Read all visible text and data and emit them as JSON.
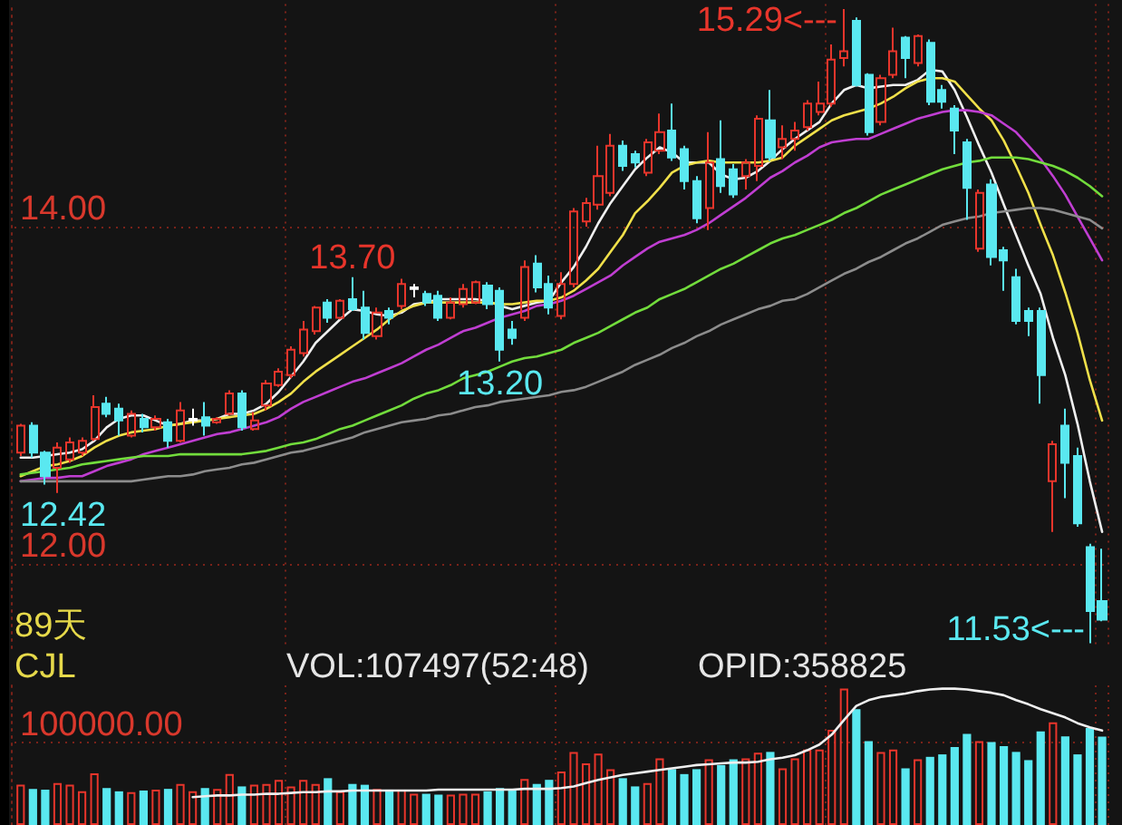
{
  "chart_data": [
    {
      "type": "candlestick",
      "categories": [
        null,
        null,
        null,
        null,
        null,
        null,
        null,
        null,
        null,
        null,
        null,
        null,
        null,
        null,
        null,
        null,
        null,
        null,
        null,
        null,
        null,
        null,
        null,
        null,
        null,
        null,
        null,
        null,
        null,
        null,
        null,
        null,
        null,
        null,
        null,
        null,
        null,
        null,
        null,
        null,
        null,
        null,
        null,
        null,
        null,
        null,
        null,
        null,
        null,
        null,
        null,
        null,
        null,
        null,
        null,
        null,
        null,
        null,
        null,
        null,
        null,
        null,
        null,
        null,
        null,
        null,
        null,
        null,
        null,
        null,
        null,
        null,
        null,
        null,
        null,
        null,
        null,
        null,
        null,
        null,
        null,
        null,
        null,
        null,
        null,
        null,
        null,
        null,
        null
      ],
      "ohlc": [
        [
          12.66,
          12.83,
          12.64,
          12.82
        ],
        [
          12.82,
          12.84,
          12.63,
          12.66
        ],
        [
          12.66,
          12.67,
          12.47,
          12.52
        ],
        [
          12.57,
          12.72,
          12.42,
          12.69
        ],
        [
          12.62,
          12.75,
          12.6,
          12.72
        ],
        [
          12.66,
          12.75,
          12.64,
          12.73
        ],
        [
          12.74,
          13.0,
          12.73,
          12.93
        ],
        [
          12.95,
          12.99,
          12.87,
          12.89
        ],
        [
          12.92,
          12.95,
          12.76,
          12.85
        ],
        [
          12.76,
          12.91,
          12.75,
          12.89
        ],
        [
          12.86,
          12.89,
          12.78,
          12.81
        ],
        [
          12.81,
          12.88,
          12.79,
          12.86
        ],
        [
          12.84,
          12.86,
          12.69,
          12.73
        ],
        [
          12.73,
          12.96,
          12.72,
          12.91
        ],
        [
          12.86,
          12.92,
          12.82,
          12.85
        ],
        [
          12.87,
          12.96,
          12.76,
          12.82
        ],
        [
          12.84,
          12.87,
          12.83,
          12.86
        ],
        [
          12.89,
          13.03,
          12.88,
          13.01
        ],
        [
          13.01,
          13.03,
          12.79,
          12.81
        ],
        [
          12.8,
          12.9,
          12.79,
          12.85
        ],
        [
          12.94,
          13.09,
          12.91,
          13.07
        ],
        [
          13.06,
          13.16,
          13.05,
          13.14
        ],
        [
          13.12,
          13.29,
          13.1,
          13.27
        ],
        [
          13.25,
          13.44,
          13.23,
          13.39
        ],
        [
          13.38,
          13.53,
          13.36,
          13.52
        ],
        [
          13.55,
          13.57,
          13.43,
          13.46
        ],
        [
          13.46,
          13.57,
          13.45,
          13.56
        ],
        [
          13.57,
          13.7,
          13.5,
          13.51
        ],
        [
          13.52,
          13.62,
          13.33,
          13.37
        ],
        [
          13.35,
          13.52,
          13.33,
          13.49
        ],
        [
          13.5,
          13.52,
          13.42,
          13.46
        ],
        [
          13.53,
          13.69,
          13.51,
          13.66
        ],
        [
          13.64,
          13.66,
          13.58,
          13.63
        ],
        [
          13.6,
          13.62,
          13.53,
          13.55
        ],
        [
          13.59,
          13.62,
          13.44,
          13.46
        ],
        [
          13.46,
          13.58,
          13.45,
          13.55
        ],
        [
          13.54,
          13.66,
          13.52,
          13.63
        ],
        [
          13.55,
          13.68,
          13.54,
          13.67
        ],
        [
          13.65,
          13.67,
          13.51,
          13.54
        ],
        [
          13.62,
          13.64,
          13.2,
          13.27
        ],
        [
          13.39,
          13.44,
          13.3,
          13.34
        ],
        [
          13.46,
          13.8,
          13.44,
          13.76
        ],
        [
          13.78,
          13.83,
          13.61,
          13.64
        ],
        [
          13.66,
          13.71,
          13.48,
          13.52
        ],
        [
          13.47,
          13.73,
          13.45,
          13.66
        ],
        [
          13.66,
          14.11,
          13.64,
          14.09
        ],
        [
          14.03,
          14.17,
          14.0,
          14.14
        ],
        [
          14.13,
          14.48,
          14.1,
          14.3
        ],
        [
          14.2,
          14.55,
          14.18,
          14.48
        ],
        [
          14.48,
          14.51,
          14.33,
          14.36
        ],
        [
          14.43,
          14.45,
          14.35,
          14.38
        ],
        [
          14.32,
          14.52,
          14.3,
          14.5
        ],
        [
          14.45,
          14.67,
          14.43,
          14.56
        ],
        [
          14.57,
          14.73,
          14.39,
          14.41
        ],
        [
          14.46,
          14.48,
          14.22,
          14.27
        ],
        [
          14.27,
          14.3,
          14.02,
          14.05
        ],
        [
          14.11,
          14.56,
          13.98,
          14.38
        ],
        [
          14.4,
          14.63,
          14.2,
          14.24
        ],
        [
          14.34,
          14.37,
          14.17,
          14.19
        ],
        [
          14.3,
          14.4,
          14.22,
          14.38
        ],
        [
          14.36,
          14.66,
          14.27,
          14.64
        ],
        [
          14.63,
          14.81,
          14.39,
          14.41
        ],
        [
          14.47,
          14.6,
          14.4,
          14.52
        ],
        [
          14.52,
          14.62,
          14.45,
          14.57
        ],
        [
          14.59,
          14.75,
          14.57,
          14.73
        ],
        [
          14.68,
          14.86,
          14.66,
          14.73
        ],
        [
          14.73,
          15.08,
          14.71,
          14.99
        ],
        [
          15.0,
          15.29,
          14.95,
          15.04
        ],
        [
          15.22,
          15.24,
          14.83,
          14.84
        ],
        [
          14.9,
          14.91,
          14.54,
          14.56
        ],
        [
          14.62,
          14.9,
          14.6,
          14.88
        ],
        [
          14.9,
          15.18,
          14.88,
          15.04
        ],
        [
          15.12,
          15.13,
          14.88,
          15.0
        ],
        [
          14.97,
          15.14,
          14.95,
          15.13
        ],
        [
          15.09,
          15.11,
          14.72,
          14.74
        ],
        [
          14.81,
          14.84,
          14.7,
          14.74
        ],
        [
          14.7,
          14.72,
          14.43,
          14.57
        ],
        [
          14.5,
          14.52,
          14.04,
          14.23
        ],
        [
          13.87,
          14.22,
          13.85,
          14.2
        ],
        [
          14.25,
          14.28,
          13.77,
          13.82
        ],
        [
          13.86,
          13.88,
          13.62,
          13.8
        ],
        [
          13.7,
          13.75,
          13.42,
          13.44
        ],
        [
          13.5,
          13.52,
          13.35,
          13.44
        ],
        [
          13.5,
          13.52,
          12.95,
          13.12
        ],
        [
          12.49,
          12.73,
          12.19,
          12.71
        ],
        [
          12.82,
          12.92,
          12.39,
          12.6
        ],
        [
          12.64,
          12.69,
          12.22,
          12.24
        ],
        [
          12.1,
          12.12,
          11.53,
          11.72
        ],
        [
          11.78,
          12.09,
          11.66,
          11.67
        ]
      ],
      "colors": [
        "#e8352b",
        "#5ae8f0",
        "#5ae8f0",
        "#e8352b",
        "#e8352b",
        "#e8352b",
        "#e8352b",
        "#5ae8f0",
        "#5ae8f0",
        "#e8352b",
        "#5ae8f0",
        "#e8352b",
        "#5ae8f0",
        "#e8352b",
        "#ffffff",
        "#5ae8f0",
        "#e8352b",
        "#e8352b",
        "#5ae8f0",
        "#e8352b",
        "#e8352b",
        "#e8352b",
        "#e8352b",
        "#e8352b",
        "#e8352b",
        "#5ae8f0",
        "#e8352b",
        "#5ae8f0",
        "#5ae8f0",
        "#e8352b",
        "#5ae8f0",
        "#e8352b",
        "#ffffff",
        "#5ae8f0",
        "#5ae8f0",
        "#e8352b",
        "#e8352b",
        "#e8352b",
        "#5ae8f0",
        "#5ae8f0",
        "#5ae8f0",
        "#e8352b",
        "#5ae8f0",
        "#5ae8f0",
        "#e8352b",
        "#e8352b",
        "#e8352b",
        "#e8352b",
        "#e8352b",
        "#5ae8f0",
        "#5ae8f0",
        "#e8352b",
        "#e8352b",
        "#5ae8f0",
        "#5ae8f0",
        "#5ae8f0",
        "#e8352b",
        "#5ae8f0",
        "#5ae8f0",
        "#e8352b",
        "#e8352b",
        "#5ae8f0",
        "#e8352b",
        "#e8352b",
        "#e8352b",
        "#e8352b",
        "#e8352b",
        "#e8352b",
        "#5ae8f0",
        "#5ae8f0",
        "#e8352b",
        "#e8352b",
        "#5ae8f0",
        "#e8352b",
        "#5ae8f0",
        "#5ae8f0",
        "#5ae8f0",
        "#5ae8f0",
        "#e8352b",
        "#5ae8f0",
        "#5ae8f0",
        "#5ae8f0",
        "#5ae8f0",
        "#5ae8f0",
        "#e8352b",
        "#5ae8f0",
        "#5ae8f0",
        "#5ae8f0",
        "#5ae8f0"
      ],
      "series": [
        {
          "type": "line",
          "color": "#efefef",
          "values": [
            12.63,
            12.63,
            12.64,
            12.65,
            12.66,
            12.68,
            12.73,
            12.81,
            12.86,
            12.88,
            12.88,
            12.85,
            12.82,
            12.83,
            12.85,
            12.85,
            12.86,
            12.89,
            12.89,
            12.91,
            12.95,
            13.02,
            13.11,
            13.2,
            13.31,
            13.38,
            13.45,
            13.51,
            13.5,
            13.48,
            13.47,
            13.49,
            13.54,
            13.55,
            13.57,
            13.57,
            13.57,
            13.57,
            13.56,
            13.53,
            13.51,
            13.53,
            13.55,
            13.56,
            13.67,
            13.76,
            13.88,
            14.02,
            14.14,
            14.24,
            14.34,
            14.41,
            14.47,
            14.44,
            14.38,
            14.38,
            14.38,
            14.31,
            14.28,
            14.29,
            14.33,
            14.39,
            14.46,
            14.52,
            14.57,
            14.62,
            14.73,
            14.81,
            14.84,
            14.82,
            14.83,
            14.84,
            14.84,
            14.87,
            14.93,
            14.92,
            14.81,
            14.65,
            14.48,
            14.32,
            14.13,
            13.95,
            13.77,
            13.6,
            13.34,
            13.12,
            12.83,
            12.49,
            12.19
          ]
        },
        {
          "type": "line",
          "color": "#f0e04a",
          "values": [
            12.52,
            12.55,
            12.58,
            12.59,
            12.61,
            12.64,
            12.69,
            12.73,
            12.76,
            12.78,
            12.79,
            12.8,
            12.82,
            12.83,
            12.84,
            12.85,
            12.86,
            12.87,
            12.88,
            12.89,
            12.92,
            12.96,
            13.01,
            13.08,
            13.14,
            13.19,
            13.24,
            13.29,
            13.34,
            13.39,
            13.45,
            13.5,
            13.53,
            13.55,
            13.55,
            13.55,
            13.55,
            13.55,
            13.55,
            13.54,
            13.54,
            13.55,
            13.56,
            13.56,
            13.58,
            13.62,
            13.68,
            13.75,
            13.85,
            13.95,
            14.08,
            14.15,
            14.23,
            14.32,
            14.36,
            14.38,
            14.39,
            14.38,
            14.38,
            14.38,
            14.38,
            14.39,
            14.41,
            14.48,
            14.53,
            14.58,
            14.63,
            14.66,
            14.68,
            14.7,
            14.73,
            14.77,
            14.82,
            14.86,
            14.88,
            14.88,
            14.86,
            14.78,
            14.7,
            14.63,
            14.51,
            14.36,
            14.2,
            14.01,
            13.83,
            13.61,
            13.37,
            13.09,
            12.85
          ]
        },
        {
          "type": "line",
          "color": "#c03ed2",
          "values": [
            12.49,
            12.5,
            12.51,
            12.51,
            12.52,
            12.52,
            12.55,
            12.58,
            12.6,
            12.62,
            12.65,
            12.67,
            12.69,
            12.71,
            12.73,
            12.75,
            12.77,
            12.78,
            12.8,
            12.82,
            12.84,
            12.87,
            12.92,
            12.96,
            12.99,
            13.02,
            13.05,
            13.08,
            13.1,
            13.13,
            13.16,
            13.19,
            13.23,
            13.27,
            13.3,
            13.34,
            13.38,
            13.4,
            13.43,
            13.46,
            13.48,
            13.5,
            13.53,
            13.54,
            13.56,
            13.59,
            13.63,
            13.67,
            13.71,
            13.77,
            13.82,
            13.87,
            13.91,
            13.93,
            13.95,
            13.98,
            14.02,
            14.07,
            14.12,
            14.17,
            14.23,
            14.29,
            14.33,
            14.38,
            14.42,
            14.47,
            14.5,
            14.51,
            14.52,
            14.52,
            14.55,
            14.58,
            14.61,
            14.64,
            14.66,
            14.68,
            14.69,
            14.69,
            14.68,
            14.66,
            14.61,
            14.56,
            14.48,
            14.4,
            14.3,
            14.19,
            14.06,
            13.93,
            13.8
          ]
        },
        {
          "type": "line",
          "color": "#72dc3c",
          "values": [
            12.53,
            12.54,
            12.55,
            12.56,
            12.57,
            12.59,
            12.6,
            12.61,
            12.62,
            12.63,
            12.64,
            12.64,
            12.64,
            12.65,
            12.65,
            12.65,
            12.65,
            12.65,
            12.65,
            12.66,
            12.67,
            12.69,
            12.71,
            12.72,
            12.74,
            12.77,
            12.8,
            12.82,
            12.85,
            12.88,
            12.91,
            12.94,
            12.98,
            13.01,
            13.03,
            13.06,
            13.1,
            13.12,
            13.14,
            13.17,
            13.2,
            13.22,
            13.23,
            13.25,
            13.27,
            13.31,
            13.34,
            13.37,
            13.41,
            13.45,
            13.49,
            13.52,
            13.57,
            13.6,
            13.63,
            13.67,
            13.71,
            13.75,
            13.78,
            13.82,
            13.86,
            13.9,
            13.93,
            13.95,
            13.98,
            14.01,
            14.04,
            14.08,
            14.11,
            14.15,
            14.19,
            14.22,
            14.25,
            14.28,
            14.31,
            14.34,
            14.36,
            14.38,
            14.39,
            14.41,
            14.41,
            14.41,
            14.4,
            14.38,
            14.36,
            14.33,
            14.29,
            14.24,
            14.18
          ]
        },
        {
          "type": "line",
          "color": "#8c8c8c",
          "values": [
            12.49,
            12.49,
            12.49,
            12.49,
            12.49,
            12.49,
            12.49,
            12.49,
            12.49,
            12.49,
            12.5,
            12.51,
            12.52,
            12.52,
            12.53,
            12.55,
            12.56,
            12.57,
            12.59,
            12.6,
            12.62,
            12.64,
            12.66,
            12.67,
            12.69,
            12.71,
            12.73,
            12.75,
            12.78,
            12.8,
            12.82,
            12.84,
            12.85,
            12.86,
            12.88,
            12.89,
            12.91,
            12.93,
            12.94,
            12.96,
            12.97,
            12.98,
            12.99,
            13.0,
            13.02,
            13.03,
            13.05,
            13.08,
            13.11,
            13.14,
            13.18,
            13.21,
            13.24,
            13.28,
            13.31,
            13.35,
            13.38,
            13.42,
            13.45,
            13.48,
            13.51,
            13.53,
            13.56,
            13.57,
            13.6,
            13.64,
            13.68,
            13.72,
            13.75,
            13.79,
            13.82,
            13.86,
            13.9,
            13.93,
            13.97,
            14.01,
            14.03,
            14.05,
            14.06,
            14.08,
            14.09,
            14.1,
            14.11,
            14.11,
            14.1,
            14.08,
            14.06,
            14.04,
            13.99
          ]
        }
      ],
      "ylim": [
        11.5,
        15.32
      ],
      "yticks": [
        {
          "value": 12,
          "label": "12.00"
        },
        {
          "value": 14,
          "label": "14.00"
        }
      ],
      "grid": true,
      "marker": "none",
      "tick_labels": "y",
      "annotations": [
        "15.29<---",
        {
          "text": "13.70",
          "y": 13.7
        },
        {
          "text": "13.20",
          "y": 13.2
        },
        {
          "text": "12.42",
          "y": 12.42
        },
        "11.53<---",
        "89天"
      ]
    },
    {
      "type": "bar",
      "categories": [
        null,
        null,
        null,
        null,
        null,
        null,
        null,
        null,
        null,
        null,
        null,
        null,
        null,
        null,
        null,
        null,
        null,
        null,
        null,
        null,
        null,
        null,
        null,
        null,
        null,
        null,
        null,
        null,
        null,
        null,
        null,
        null,
        null,
        null,
        null,
        null,
        null,
        null,
        null,
        null,
        null,
        null,
        null,
        null,
        null,
        null,
        null,
        null,
        null,
        null,
        null,
        null,
        null,
        null,
        null,
        null,
        null,
        null,
        null,
        null,
        null,
        null,
        null,
        null,
        null,
        null,
        null,
        null,
        null,
        null,
        null,
        null,
        null,
        null,
        null,
        null,
        null,
        null,
        null,
        null,
        null,
        null,
        null,
        null,
        null,
        null,
        null,
        null,
        null
      ],
      "series": [
        {
          "colors": [
            "#e8352b",
            "#5ae8f0",
            "#5ae8f0",
            "#e8352b",
            "#e8352b",
            "#e8352b",
            "#e8352b",
            "#5ae8f0",
            "#5ae8f0",
            "#e8352b",
            "#5ae8f0",
            "#e8352b",
            "#5ae8f0",
            "#e8352b",
            "#e8352b",
            "#5ae8f0",
            "#e8352b",
            "#e8352b",
            "#5ae8f0",
            "#e8352b",
            "#e8352b",
            "#e8352b",
            "#e8352b",
            "#e8352b",
            "#e8352b",
            "#5ae8f0",
            "#e8352b",
            "#5ae8f0",
            "#5ae8f0",
            "#e8352b",
            "#5ae8f0",
            "#e8352b",
            "#e8352b",
            "#5ae8f0",
            "#5ae8f0",
            "#e8352b",
            "#e8352b",
            "#e8352b",
            "#5ae8f0",
            "#5ae8f0",
            "#5ae8f0",
            "#e8352b",
            "#5ae8f0",
            "#5ae8f0",
            "#e8352b",
            "#e8352b",
            "#e8352b",
            "#e8352b",
            "#e8352b",
            "#5ae8f0",
            "#5ae8f0",
            "#e8352b",
            "#e8352b",
            "#5ae8f0",
            "#5ae8f0",
            "#5ae8f0",
            "#e8352b",
            "#5ae8f0",
            "#5ae8f0",
            "#e8352b",
            "#e8352b",
            "#5ae8f0",
            "#e8352b",
            "#e8352b",
            "#e8352b",
            "#e8352b",
            "#e8352b",
            "#e8352b",
            "#5ae8f0",
            "#5ae8f0",
            "#e8352b",
            "#e8352b",
            "#5ae8f0",
            "#e8352b",
            "#5ae8f0",
            "#5ae8f0",
            "#5ae8f0",
            "#5ae8f0",
            "#e8352b",
            "#5ae8f0",
            "#5ae8f0",
            "#5ae8f0",
            "#5ae8f0",
            "#5ae8f0",
            "#e8352b",
            "#5ae8f0",
            "#5ae8f0",
            "#5ae8f0",
            "#5ae8f0"
          ],
          "values": [
            49000,
            44000,
            43000,
            51000,
            49000,
            41000,
            63000,
            45000,
            41000,
            40000,
            42000,
            43000,
            44000,
            50000,
            41000,
            45000,
            44000,
            62000,
            47000,
            49000,
            50000,
            55000,
            47000,
            55000,
            50000,
            57000,
            41000,
            50000,
            49000,
            44000,
            41000,
            43000,
            38000,
            38000,
            37000,
            37000,
            38000,
            38000,
            41000,
            45000,
            43000,
            56000,
            50000,
            55000,
            65000,
            89000,
            75000,
            87000,
            68000,
            57000,
            47000,
            51000,
            81000,
            68000,
            62000,
            68000,
            80000,
            73000,
            80000,
            81000,
            88000,
            89000,
            69000,
            81000,
            92000,
            92000,
            116000,
            166000,
            141000,
            102000,
            89000,
            92000,
            69000,
            80000,
            83000,
            86000,
            95000,
            111000,
            102000,
            101000,
            96000,
            89000,
            79000,
            114000,
            125000,
            108000,
            86000,
            118000,
            107497
          ]
        },
        {
          "type": "line",
          "color": "#efefef",
          "values": [
            null,
            null,
            null,
            null,
            null,
            null,
            null,
            null,
            null,
            null,
            null,
            null,
            null,
            null,
            34000,
            35000,
            36000,
            36000,
            37000,
            37000,
            38000,
            38000,
            39000,
            40000,
            40000,
            41000,
            41000,
            42000,
            42000,
            42000,
            42000,
            42000,
            42000,
            42000,
            43000,
            43000,
            43000,
            43000,
            43000,
            43000,
            43000,
            44000,
            44000,
            44000,
            45000,
            47000,
            51000,
            55000,
            58000,
            61000,
            63000,
            65000,
            67000,
            69000,
            71000,
            73000,
            74000,
            75000,
            76000,
            76000,
            77000,
            80000,
            82000,
            85000,
            91000,
            98000,
            110000,
            128000,
            145000,
            152000,
            156000,
            158000,
            160000,
            163000,
            165000,
            166000,
            166000,
            165000,
            163000,
            161000,
            158000,
            152000,
            147000,
            141000,
            136000,
            131000,
            124000,
            119000,
            115000
          ]
        }
      ],
      "ylim": [
        0,
        170000
      ],
      "yticks": [
        {
          "value": 100000,
          "label": "100000.00"
        }
      ],
      "grid": true,
      "marker": "none",
      "tick_labels": "y",
      "annotations": [
        "CJL",
        "VOL:107497(52:48)",
        "OPID:358825"
      ]
    }
  ]
}
